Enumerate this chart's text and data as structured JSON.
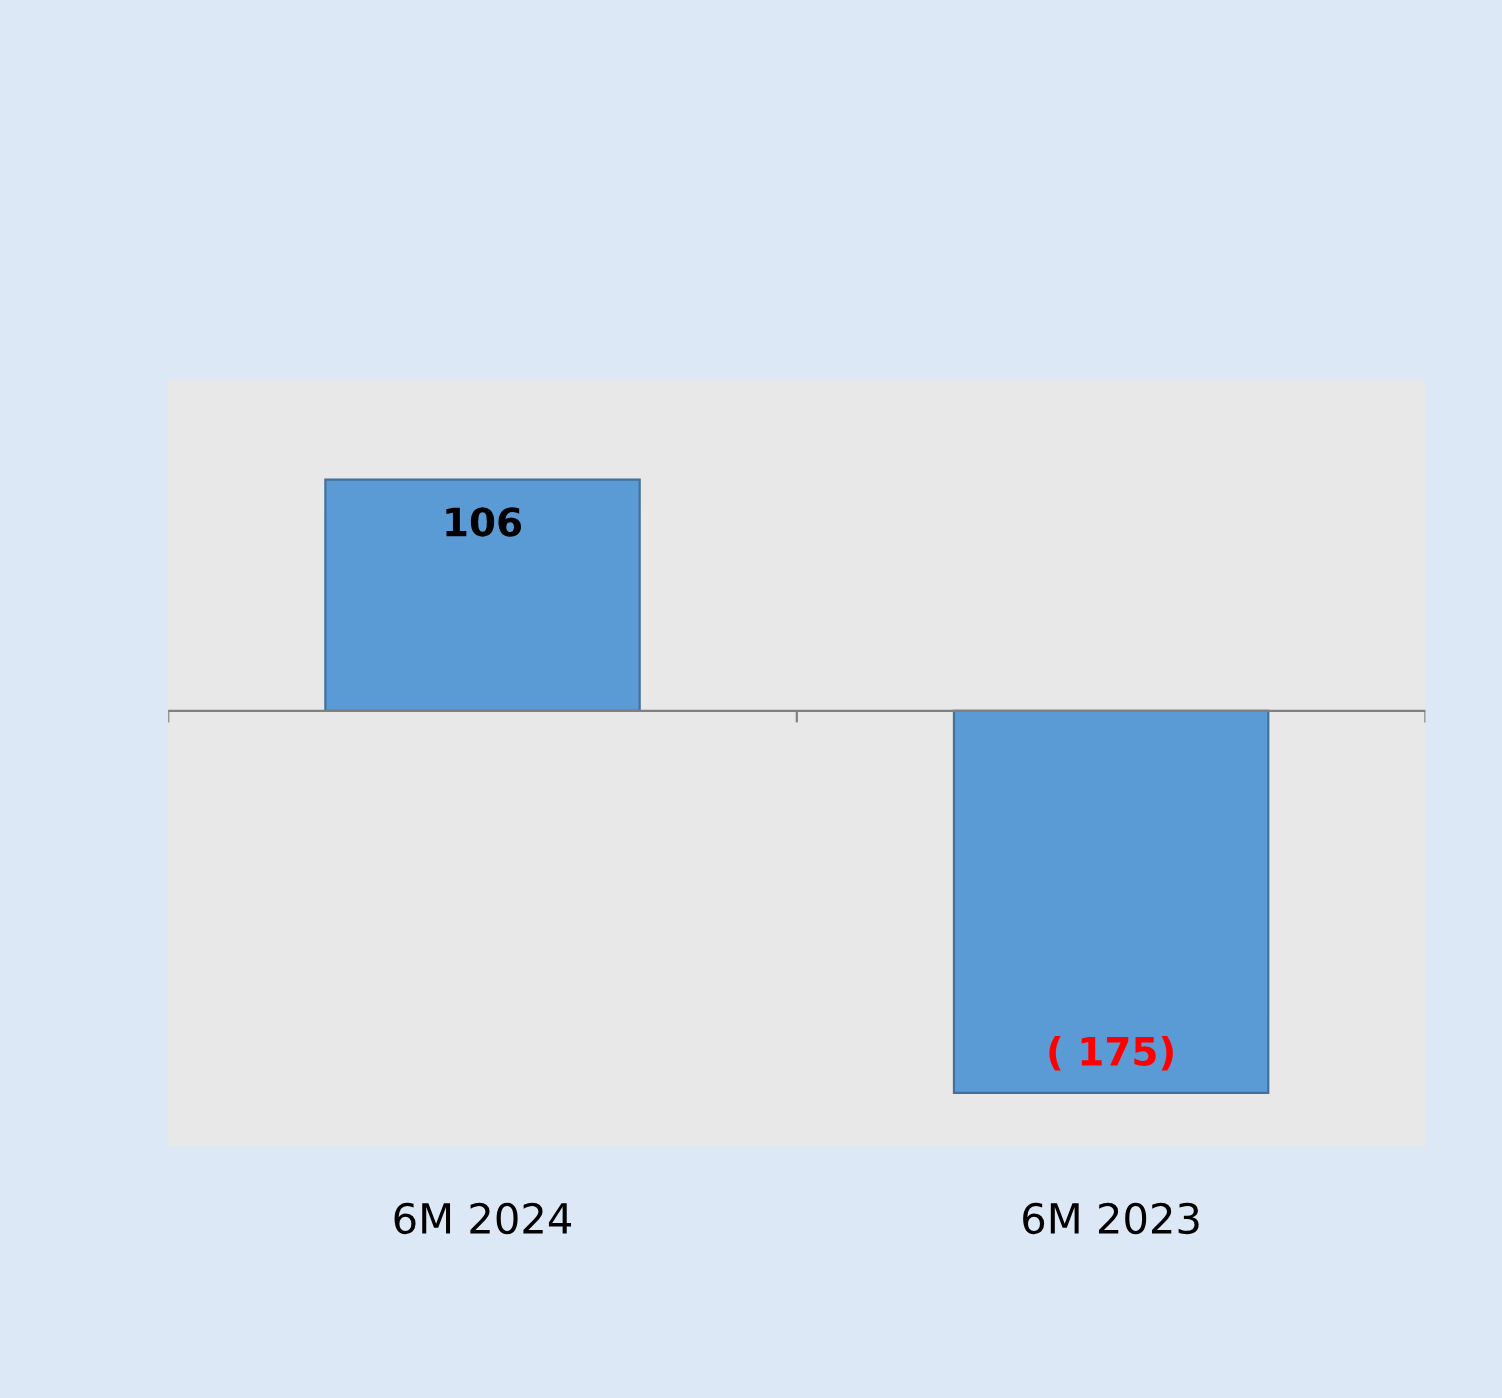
{
  "chart_data": {
    "type": "bar",
    "categories": [
      "6M 2024",
      "6M 2023"
    ],
    "values": [
      106,
      -175
    ],
    "color": "#5b9bd5",
    "value_labels": [
      "106",
      "( 175)"
    ],
    "grid": false,
    "legend": false
  }
}
